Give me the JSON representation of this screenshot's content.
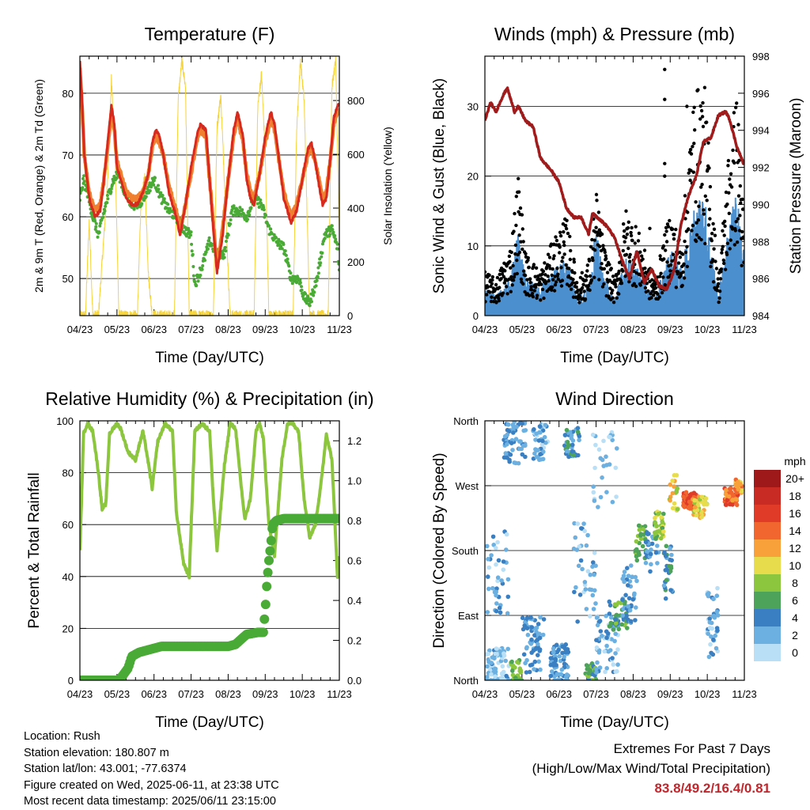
{
  "chart_data": [
    {
      "type": "line",
      "title": "Temperature (F)",
      "xlabel": "Time (Day/UTC)",
      "ylabel": "2m & 9m T (Red, Orange) & 2m Td (Green)",
      "y2label": "Solar Insolation (Yellow)",
      "x_ticks": [
        "04/23",
        "05/23",
        "06/23",
        "07/23",
        "08/23",
        "09/23",
        "10/23",
        "11/23"
      ],
      "xlim": [
        0,
        7
      ],
      "ylim": [
        44,
        86
      ],
      "y_ticks": [
        50,
        60,
        70,
        80
      ],
      "y2lim": [
        0,
        965
      ],
      "y2_ticks": [
        0,
        200,
        400,
        600,
        800
      ],
      "grid": true,
      "series": [
        {
          "name": "2m T",
          "color": "#d62a1e",
          "axis": "left",
          "x": [
            0,
            0.05,
            0.12,
            0.25,
            0.4,
            0.55,
            0.65,
            0.75,
            0.85,
            0.93,
            1.0,
            1.1,
            1.25,
            1.4,
            1.55,
            1.7,
            1.85,
            1.95,
            2.05,
            2.15,
            2.25,
            2.4,
            2.5,
            2.6,
            2.7,
            2.85,
            3.0,
            3.15,
            3.25,
            3.4,
            3.5,
            3.6,
            3.7,
            3.85,
            4.0,
            4.15,
            4.25,
            4.4,
            4.5,
            4.6,
            4.7,
            4.85,
            5.0,
            5.15,
            5.25,
            5.4,
            5.5,
            5.6,
            5.7,
            5.85,
            6.0,
            6.15,
            6.25,
            6.35,
            6.45,
            6.55,
            6.65,
            6.75,
            6.85,
            6.95,
            7.0
          ],
          "values": [
            85,
            80,
            70,
            63,
            60,
            61,
            66,
            72,
            78,
            75,
            68,
            66,
            63,
            62,
            62,
            64,
            67,
            72,
            74,
            73,
            70,
            64,
            62,
            60,
            57,
            62,
            68,
            73,
            75,
            74,
            66,
            58,
            51,
            57,
            66,
            74,
            77,
            73,
            66,
            63,
            62,
            67,
            73,
            77,
            75,
            68,
            63,
            61,
            59,
            61,
            66,
            71,
            72,
            69,
            65,
            62,
            63,
            69,
            76,
            78,
            78
          ]
        },
        {
          "name": "9m T",
          "color": "#f08030",
          "axis": "left",
          "x": [
            0,
            0.05,
            0.12,
            0.25,
            0.4,
            0.55,
            0.65,
            0.75,
            0.85,
            0.93,
            1.0,
            1.1,
            1.25,
            1.4,
            1.55,
            1.7,
            1.85,
            1.95,
            2.05,
            2.15,
            2.25,
            2.4,
            2.5,
            2.6,
            2.7,
            2.85,
            3.0,
            3.15,
            3.25,
            3.4,
            3.5,
            3.6,
            3.7,
            3.85,
            4.0,
            4.15,
            4.25,
            4.4,
            4.5,
            4.6,
            4.7,
            4.85,
            5.0,
            5.15,
            5.25,
            5.4,
            5.5,
            5.6,
            5.7,
            5.85,
            6.0,
            6.15,
            6.25,
            6.35,
            6.45,
            6.55,
            6.65,
            6.75,
            6.85,
            6.95,
            7.0
          ],
          "values": [
            84,
            79,
            70,
            64,
            61,
            62,
            66,
            71,
            77,
            74,
            69,
            67,
            64,
            63,
            63,
            64,
            67,
            71,
            73,
            72,
            70,
            65,
            63,
            61,
            58,
            62,
            67,
            72,
            74,
            73,
            66,
            59,
            52,
            58,
            66,
            73,
            76,
            72,
            67,
            64,
            63,
            67,
            72,
            76,
            74,
            68,
            64,
            62,
            60,
            62,
            66,
            70,
            71,
            69,
            66,
            63,
            64,
            69,
            75,
            77,
            77
          ]
        },
        {
          "name": "2m Td",
          "color": "#4aaa36",
          "axis": "left",
          "x": [
            0,
            0.1,
            0.2,
            0.35,
            0.5,
            0.7,
            0.9,
            1.05,
            1.2,
            1.4,
            1.6,
            1.8,
            2.0,
            2.2,
            2.4,
            2.6,
            2.8,
            3.0,
            3.1,
            3.3,
            3.5,
            3.7,
            3.9,
            4.1,
            4.3,
            4.5,
            4.7,
            4.9,
            5.1,
            5.3,
            5.5,
            5.7,
            5.9,
            6.05,
            6.2,
            6.4,
            6.6,
            6.8,
            6.95,
            7.0
          ],
          "values": [
            63,
            66,
            64,
            60,
            57,
            62,
            66,
            67,
            64,
            62,
            62,
            64,
            66,
            63,
            61,
            60,
            58,
            57,
            49,
            52,
            56,
            54,
            54,
            61,
            61,
            60,
            63,
            62,
            58,
            56,
            55,
            50,
            50,
            47,
            46,
            50,
            57,
            58,
            55,
            51
          ]
        },
        {
          "name": "Solar Insolation",
          "color": "#f5d33a",
          "axis": "right",
          "x": [
            0,
            0.15,
            0.25,
            0.35,
            0.45,
            0.5,
            0.6,
            0.75,
            0.85,
            0.95,
            1.05,
            1.15,
            1.3,
            1.45,
            1.55,
            1.65,
            1.75,
            1.85,
            1.95,
            2.1,
            2.2,
            2.3,
            2.4,
            2.55,
            2.65,
            2.75,
            2.85,
            2.95,
            3.05,
            3.2,
            3.3,
            3.4,
            3.5,
            3.6,
            3.7,
            3.8,
            3.9,
            4.05,
            4.15,
            4.25,
            4.35,
            4.45,
            4.55,
            4.7,
            4.8,
            4.9,
            5.0,
            5.1,
            5.2,
            5.35,
            5.45,
            5.55,
            5.65,
            5.75,
            5.85,
            5.95,
            6.05,
            6.2,
            6.3,
            6.4,
            6.5,
            6.6,
            6.7,
            6.8,
            6.9,
            7.0
          ],
          "values": [
            0,
            0,
            350,
            0,
            0,
            0,
            200,
            500,
            880,
            600,
            0,
            0,
            0,
            0,
            0,
            420,
            520,
            150,
            0,
            0,
            0,
            0,
            0,
            0,
            800,
            950,
            850,
            0,
            0,
            0,
            0,
            0,
            0,
            0,
            700,
            820,
            500,
            0,
            0,
            0,
            0,
            0,
            0,
            0,
            780,
            900,
            600,
            0,
            0,
            0,
            0,
            0,
            0,
            0,
            700,
            950,
            800,
            0,
            0,
            0,
            0,
            0,
            0,
            850,
            950,
            300
          ]
        }
      ]
    },
    {
      "type": "scatter",
      "title": "Winds (mph) & Pressure (mb)",
      "xlabel": "Time (Day/UTC)",
      "ylabel": "Sonic Wind & Gust (Blue, Black)",
      "y2label": "Station Pressure (Maroon)",
      "x_ticks": [
        "04/23",
        "05/23",
        "06/23",
        "07/23",
        "08/23",
        "09/23",
        "10/23",
        "11/23"
      ],
      "xlim": [
        0,
        7
      ],
      "ylim": [
        0,
        37.2
      ],
      "y_ticks": [
        0,
        10,
        20,
        30
      ],
      "y2lim": [
        984,
        998
      ],
      "y2_ticks": [
        984,
        986,
        988,
        990,
        992,
        994,
        996,
        998
      ],
      "grid": true,
      "series": [
        {
          "name": "Sonic Wind",
          "color": "#4b8fcf",
          "style": "band",
          "x": [
            0,
            0.3,
            0.7,
            0.9,
            1.1,
            1.5,
            1.9,
            2.2,
            2.5,
            2.8,
            3.0,
            3.2,
            3.5,
            3.8,
            4.1,
            4.4,
            4.6,
            5.0,
            5.3,
            5.6,
            5.9,
            6.3,
            6.6,
            6.8,
            7.0
          ],
          "values": [
            3,
            2,
            4,
            9,
            4,
            3,
            5,
            6,
            2,
            3,
            9,
            4,
            2,
            6,
            5,
            3,
            2,
            7,
            5,
            11,
            13,
            2,
            10,
            13,
            6
          ]
        },
        {
          "name": "Gust",
          "color": "#000000",
          "style": "dots",
          "x": [
            0,
            0.3,
            0.7,
            0.9,
            1.1,
            1.5,
            1.9,
            2.2,
            2.5,
            2.8,
            3.0,
            3.2,
            3.5,
            3.8,
            4.1,
            4.4,
            4.6,
            5.0,
            5.3,
            5.6,
            5.9,
            6.3,
            6.6,
            6.8,
            7.0
          ],
          "values": [
            5,
            4,
            8,
            16,
            7,
            5,
            9,
            11,
            4,
            6,
            14,
            8,
            4,
            12,
            10,
            6,
            4,
            12,
            8,
            24,
            27,
            4,
            20,
            25,
            10
          ]
        },
        {
          "name": "Station Pressure",
          "color": "#a01c1c",
          "axis": "right",
          "style": "line",
          "x": [
            0,
            0.15,
            0.3,
            0.45,
            0.6,
            0.8,
            0.9,
            1.1,
            1.3,
            1.5,
            1.8,
            2.0,
            2.2,
            2.4,
            2.6,
            2.8,
            2.9,
            3.1,
            3.3,
            3.5,
            3.7,
            3.9,
            4.1,
            4.3,
            4.5,
            4.7,
            4.9,
            5.1,
            5.3,
            5.5,
            5.7,
            5.9,
            6.1,
            6.3,
            6.5,
            6.6,
            6.8,
            7.0
          ],
          "values": [
            994.5,
            995.5,
            995,
            995.7,
            996.3,
            995,
            995.3,
            994.5,
            994.2,
            992.5,
            991.8,
            991.2,
            989.8,
            989.3,
            989.3,
            988.4,
            989.5,
            989.2,
            988.8,
            988.2,
            987,
            986,
            987.5,
            985.8,
            986.5,
            985.6,
            985.4,
            986.4,
            989,
            990.5,
            991.5,
            993.4,
            993.6,
            994.8,
            995,
            994.6,
            993.1,
            992.1
          ]
        }
      ]
    },
    {
      "type": "line",
      "title": "Relative Humidity (%) & Precipitation (in)",
      "xlabel": "Time (Day/UTC)",
      "ylabel": "Percent & Total Rainfall",
      "x_ticks": [
        "04/23",
        "05/23",
        "06/23",
        "07/23",
        "08/23",
        "09/23",
        "10/23",
        "11/23"
      ],
      "xlim": [
        0,
        7
      ],
      "ylim": [
        0,
        100
      ],
      "y_ticks": [
        0,
        20,
        40,
        60,
        80,
        100
      ],
      "y2lim": [
        0,
        1.3
      ],
      "y2_ticks": [
        0.0,
        0.2,
        0.4,
        0.6,
        0.8,
        1.0,
        1.2
      ],
      "grid": true,
      "series": [
        {
          "name": "Relative Humidity",
          "color": "#8cc63f",
          "axis": "left",
          "x": [
            0,
            0.1,
            0.2,
            0.35,
            0.5,
            0.6,
            0.7,
            0.8,
            1.0,
            1.1,
            1.3,
            1.5,
            1.7,
            1.8,
            1.95,
            2.1,
            2.3,
            2.5,
            2.6,
            2.8,
            2.95,
            3.1,
            3.3,
            3.5,
            3.6,
            3.7,
            3.9,
            4.05,
            4.2,
            4.35,
            4.45,
            4.6,
            4.75,
            4.85,
            4.95,
            5.1,
            5.25,
            5.45,
            5.6,
            5.75,
            5.9,
            6.05,
            6.2,
            6.35,
            6.5,
            6.65,
            6.8,
            6.95,
            7.0
          ],
          "values": [
            50,
            95,
            99,
            96,
            80,
            66,
            68,
            95,
            99,
            97,
            88,
            85,
            96,
            88,
            74,
            92,
            99,
            96,
            65,
            45,
            40,
            96,
            99,
            96,
            70,
            50,
            83,
            99,
            97,
            75,
            62,
            70,
            96,
            99,
            93,
            60,
            48,
            85,
            99,
            99,
            96,
            70,
            55,
            60,
            75,
            95,
            85,
            40,
            48
          ]
        },
        {
          "name": "Total Rainfall",
          "color": "#4aaa36",
          "axis": "right",
          "style": "dots",
          "x": [
            0,
            1.0,
            1.1,
            1.3,
            1.4,
            1.6,
            1.8,
            2.0,
            2.2,
            2.5,
            3.0,
            4.0,
            4.2,
            4.5,
            4.8,
            4.95,
            5.0,
            5.05,
            5.1,
            5.15,
            5.2,
            5.3,
            5.5,
            6.0,
            6.5,
            7.0
          ],
          "values": [
            0,
            0,
            0.01,
            0.06,
            0.12,
            0.14,
            0.15,
            0.16,
            0.17,
            0.17,
            0.17,
            0.17,
            0.18,
            0.23,
            0.24,
            0.24,
            0.35,
            0.5,
            0.6,
            0.68,
            0.78,
            0.8,
            0.81,
            0.81,
            0.81,
            0.81
          ]
        }
      ]
    },
    {
      "type": "scatter",
      "title": "Wind Direction",
      "xlabel": "Time (Day/UTC)",
      "ylabel": "Direction (Colored By Speed)",
      "x_ticks": [
        "04/23",
        "05/23",
        "06/23",
        "07/23",
        "08/23",
        "09/23",
        "10/23",
        "11/23"
      ],
      "xlim": [
        0,
        7
      ],
      "y_ticks": [
        "North",
        "East",
        "South",
        "West",
        "North"
      ],
      "ylim": [
        0,
        360
      ],
      "grid": true,
      "colorbar": {
        "title": "mph",
        "labels": [
          "20+",
          "18",
          "16",
          "14",
          "12",
          "10",
          "8",
          "6",
          "4",
          "2",
          "0"
        ],
        "colors": [
          "#9e1a1a",
          "#c82a24",
          "#e03a28",
          "#f0662e",
          "#f8a03a",
          "#e7dd4c",
          "#8cc63f",
          "#4ea35a",
          "#3a7fc2",
          "#6bb0e0",
          "#b8dff5"
        ]
      }
    }
  ],
  "info": {
    "location": "Location: Rush",
    "elevation": "Station elevation: 180.807 m",
    "latlon": "Station lat/lon: 43.001; -77.6374",
    "created": "Figure created on Wed, 2025-06-11, at 23:38 UTC",
    "recent": "Most recent data timestamp: 2025/06/11 23:15:00"
  },
  "extremes": {
    "title": "Extremes For Past 7 Days",
    "subtitle": "(High/Low/Max Wind/Total Precipitation)",
    "values": "83.8/49.2/16.4/0.81"
  }
}
